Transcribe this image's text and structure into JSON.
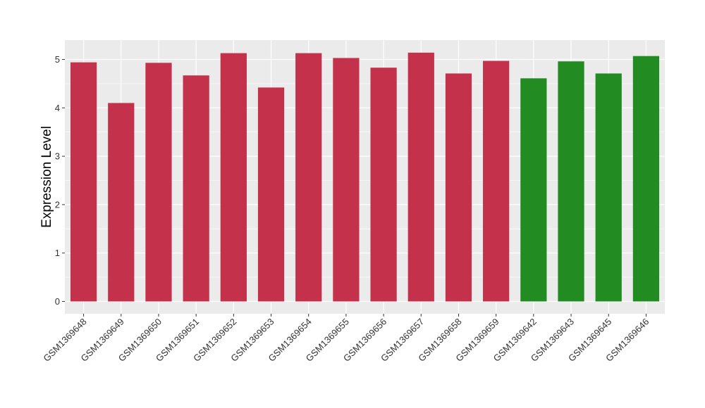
{
  "chart_data": {
    "type": "bar",
    "title": "",
    "xlabel": "",
    "ylabel": "Expression Level",
    "ylim": [
      0,
      5
    ],
    "yticks": [
      "0",
      "1",
      "2",
      "3",
      "4",
      "5"
    ],
    "grid": true,
    "categories": [
      "GSM1369648",
      "GSM1369649",
      "GSM1369650",
      "GSM1369651",
      "GSM1369652",
      "GSM1369653",
      "GSM1369654",
      "GSM1369655",
      "GSM1369656",
      "GSM1369657",
      "GSM1369658",
      "GSM1369659",
      "GSM1369642",
      "GSM1369643",
      "GSM1369645",
      "GSM1369646"
    ],
    "values": [
      4.94,
      4.1,
      4.93,
      4.67,
      5.13,
      4.42,
      5.13,
      5.03,
      4.83,
      5.14,
      4.71,
      4.97,
      4.61,
      4.96,
      4.71,
      5.07
    ],
    "group_colors": [
      "#c4314b",
      "#c4314b",
      "#c4314b",
      "#c4314b",
      "#c4314b",
      "#c4314b",
      "#c4314b",
      "#c4314b",
      "#c4314b",
      "#c4314b",
      "#c4314b",
      "#c4314b",
      "#228b22",
      "#228b22",
      "#228b22",
      "#228b22"
    ],
    "panel_background": "#ebebeb",
    "grid_color": "#ffffff"
  }
}
